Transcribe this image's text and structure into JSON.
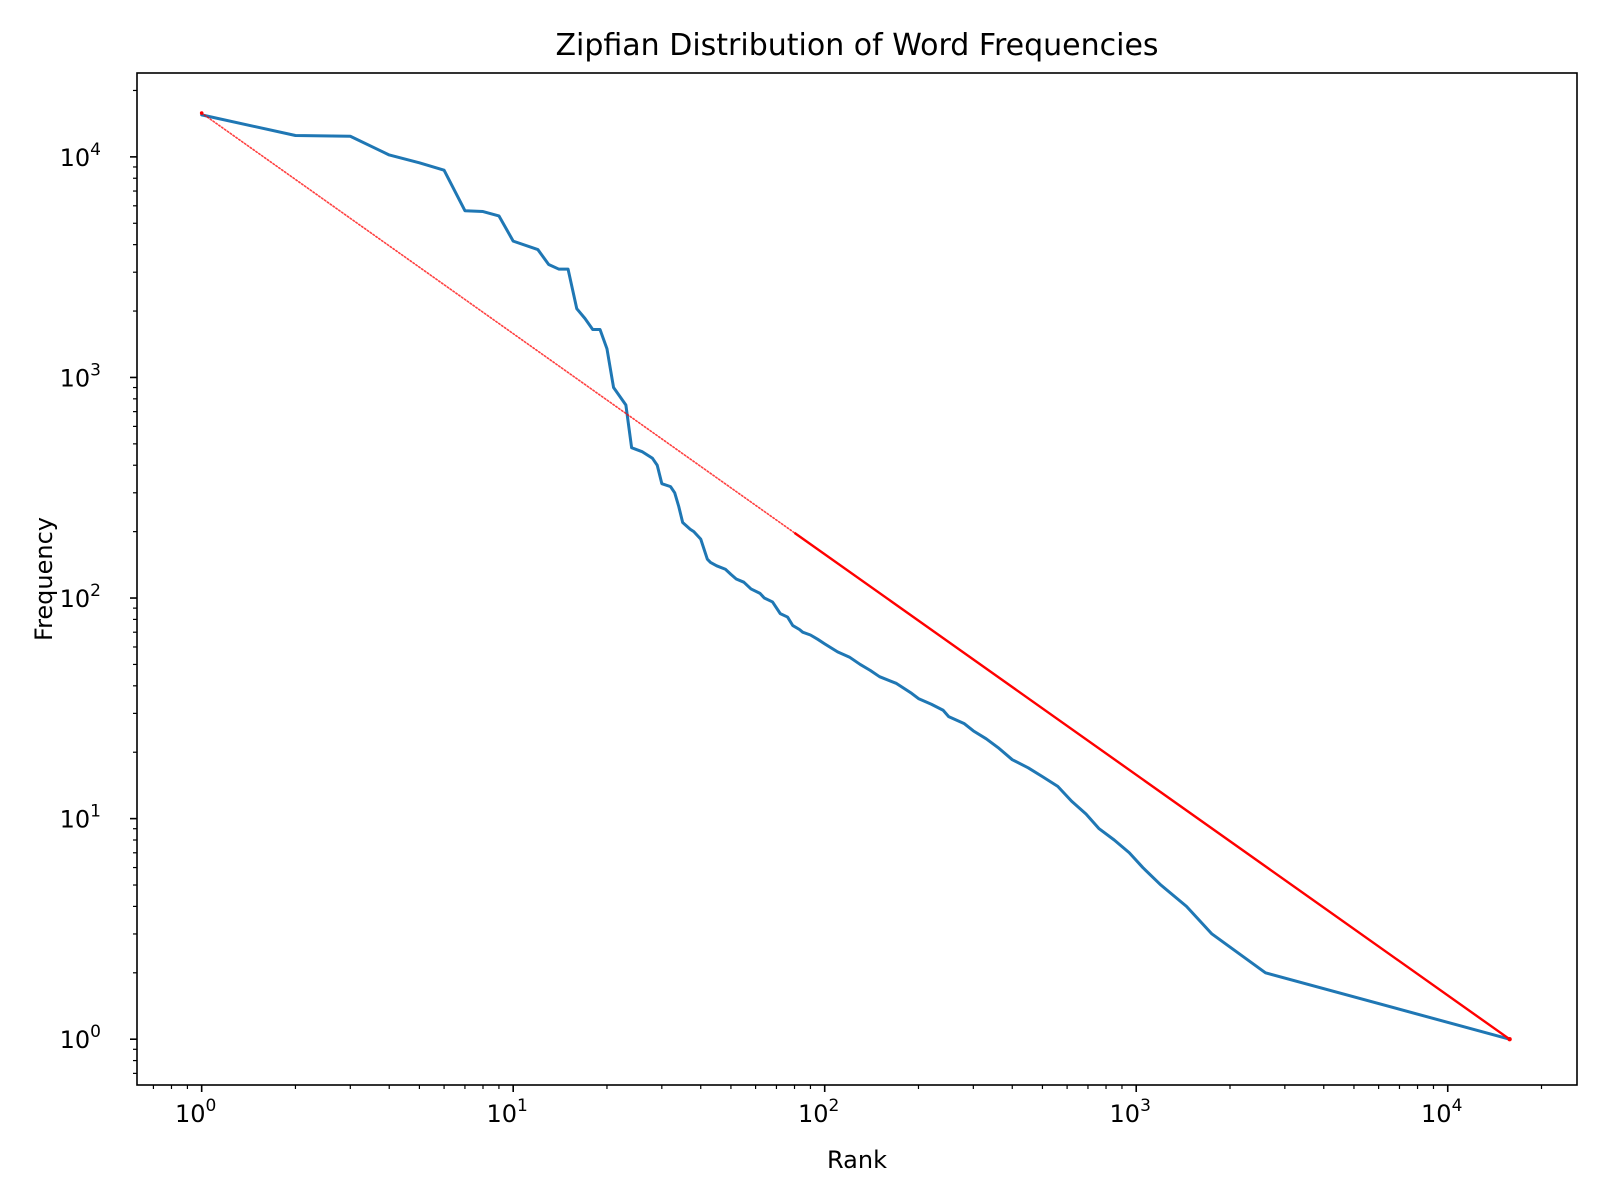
{
  "chart_data": {
    "type": "line",
    "title": "Zipfian Distribution of Word Frequencies",
    "xlabel": "Rank",
    "ylabel": "Frequency",
    "xscale": "log",
    "yscale": "log",
    "xlim": [
      0.62,
      26000
    ],
    "ylim": [
      0.62,
      24000
    ],
    "grid": false,
    "xticks": [
      {
        "value": 1,
        "base": "10",
        "exp": "0"
      },
      {
        "value": 10,
        "base": "10",
        "exp": "1"
      },
      {
        "value": 100,
        "base": "10",
        "exp": "2"
      },
      {
        "value": 1000,
        "base": "10",
        "exp": "3"
      },
      {
        "value": 10000,
        "base": "10",
        "exp": "4"
      }
    ],
    "yticks": [
      {
        "value": 1,
        "base": "10",
        "exp": "0"
      },
      {
        "value": 10,
        "base": "10",
        "exp": "1"
      },
      {
        "value": 100,
        "base": "10",
        "exp": "2"
      },
      {
        "value": 1000,
        "base": "10",
        "exp": "3"
      },
      {
        "value": 10000,
        "base": "10",
        "exp": "4"
      }
    ],
    "series": [
      {
        "color": "#1f77b4",
        "style": "solid",
        "x": [
          1,
          2,
          3,
          4,
          5,
          6,
          7,
          8,
          9,
          10,
          12,
          13,
          14,
          15,
          16,
          17,
          18,
          19,
          20,
          21,
          23,
          24,
          26,
          28,
          29,
          30,
          32,
          33,
          34,
          35,
          37,
          38,
          40,
          42,
          43,
          45,
          48,
          50,
          52,
          55,
          58,
          62,
          64,
          68,
          72,
          76,
          79,
          83,
          85,
          90,
          95,
          100,
          110,
          120,
          130,
          140,
          150,
          170,
          190,
          200,
          220,
          240,
          250,
          280,
          300,
          330,
          360,
          400,
          450,
          500,
          560,
          620,
          690,
          760,
          850,
          950,
          1050,
          1200,
          1450,
          1750,
          2600,
          15800
        ],
        "y": [
          15500,
          12500,
          12400,
          10200,
          9400,
          8700,
          5700,
          5650,
          5400,
          4150,
          3800,
          3250,
          3100,
          3100,
          2050,
          1850,
          1650,
          1650,
          1350,
          900,
          750,
          480,
          460,
          430,
          400,
          330,
          320,
          300,
          260,
          220,
          205,
          200,
          185,
          150,
          145,
          140,
          135,
          128,
          122,
          118,
          110,
          105,
          100,
          96,
          85,
          82,
          75,
          72,
          70,
          68,
          65,
          62,
          57,
          54,
          50,
          47,
          44,
          41,
          37,
          35,
          33,
          31,
          29,
          27,
          25,
          23,
          21,
          18.5,
          17,
          15.5,
          14,
          12,
          10.5,
          9,
          8,
          7,
          6,
          5,
          4,
          3,
          2,
          1
        ]
      },
      {
        "color": "#ff0000",
        "style": "dotted",
        "x": [
          1,
          15800
        ],
        "y": [
          15800,
          1
        ]
      }
    ]
  }
}
